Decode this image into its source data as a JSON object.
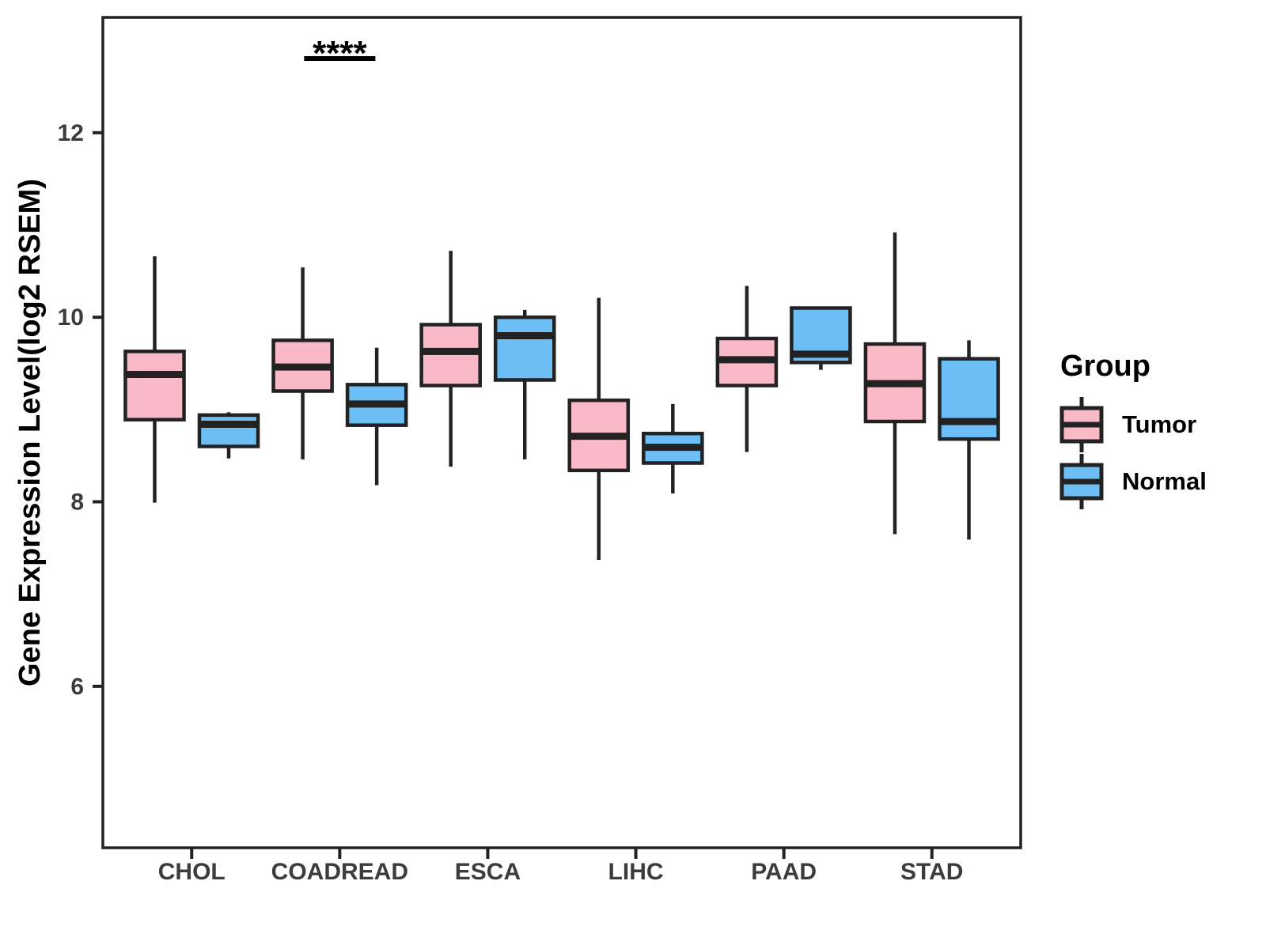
{
  "chart_data": {
    "type": "boxplot",
    "title": "",
    "xlabel": "",
    "ylabel": "Gene Expression Level(log2 RSEM)",
    "ylim": [
      4.25,
      13.25
    ],
    "yticks": [
      6,
      8,
      10,
      12
    ],
    "grid": false,
    "categories": [
      "CHOL",
      "COADREAD",
      "ESCA",
      "LIHC",
      "PAAD",
      "STAD"
    ],
    "legend": {
      "title": "Group",
      "position": "right",
      "entries": [
        {
          "label": "Tumor",
          "color": "#FAB9C6"
        },
        {
          "label": "Normal",
          "color": "#6CBEF5"
        }
      ]
    },
    "series": [
      {
        "name": "Tumor",
        "color": "#FAB9C6",
        "boxes": [
          {
            "category": "CHOL",
            "whisker_low": 7.99,
            "q1": 8.89,
            "median": 9.38,
            "q3": 9.63,
            "whisker_high": 10.66
          },
          {
            "category": "COADREAD",
            "whisker_low": 8.46,
            "q1": 9.2,
            "median": 9.46,
            "q3": 9.75,
            "whisker_high": 10.54
          },
          {
            "category": "ESCA",
            "whisker_low": 8.38,
            "q1": 9.26,
            "median": 9.63,
            "q3": 9.92,
            "whisker_high": 10.72
          },
          {
            "category": "LIHC",
            "whisker_low": 7.37,
            "q1": 8.34,
            "median": 8.71,
            "q3": 9.1,
            "whisker_high": 10.21
          },
          {
            "category": "PAAD",
            "whisker_low": 8.54,
            "q1": 9.26,
            "median": 9.54,
            "q3": 9.77,
            "whisker_high": 10.34
          },
          {
            "category": "STAD",
            "whisker_low": 7.65,
            "q1": 8.87,
            "median": 9.28,
            "q3": 9.71,
            "whisker_high": 10.92
          }
        ]
      },
      {
        "name": "Normal",
        "color": "#6CBEF5",
        "boxes": [
          {
            "category": "CHOL",
            "whisker_low": 8.47,
            "q1": 8.6,
            "median": 8.84,
            "q3": 8.94,
            "whisker_high": 8.97
          },
          {
            "category": "COADREAD",
            "whisker_low": 8.18,
            "q1": 8.83,
            "median": 9.06,
            "q3": 9.27,
            "whisker_high": 9.67
          },
          {
            "category": "ESCA",
            "whisker_low": 8.46,
            "q1": 9.32,
            "median": 9.8,
            "q3": 10.0,
            "whisker_high": 10.08
          },
          {
            "category": "LIHC",
            "whisker_low": 8.09,
            "q1": 8.42,
            "median": 8.59,
            "q3": 8.74,
            "whisker_high": 9.06
          },
          {
            "category": "PAAD",
            "whisker_low": 9.43,
            "q1": 9.51,
            "median": 9.6,
            "q3": 10.1,
            "whisker_high": 10.1
          },
          {
            "category": "STAD",
            "whisker_low": 7.59,
            "q1": 8.68,
            "median": 8.87,
            "q3": 9.55,
            "whisker_high": 9.75
          }
        ]
      }
    ],
    "annotations": [
      {
        "type": "significance",
        "category": "COADREAD",
        "label": "****"
      }
    ]
  },
  "styles": {
    "box_border_color": "#222222",
    "axis_color": "#222222",
    "tick_label_color": "#3C3C3C",
    "text_color": "#000000",
    "background": "#FFFFFF"
  }
}
